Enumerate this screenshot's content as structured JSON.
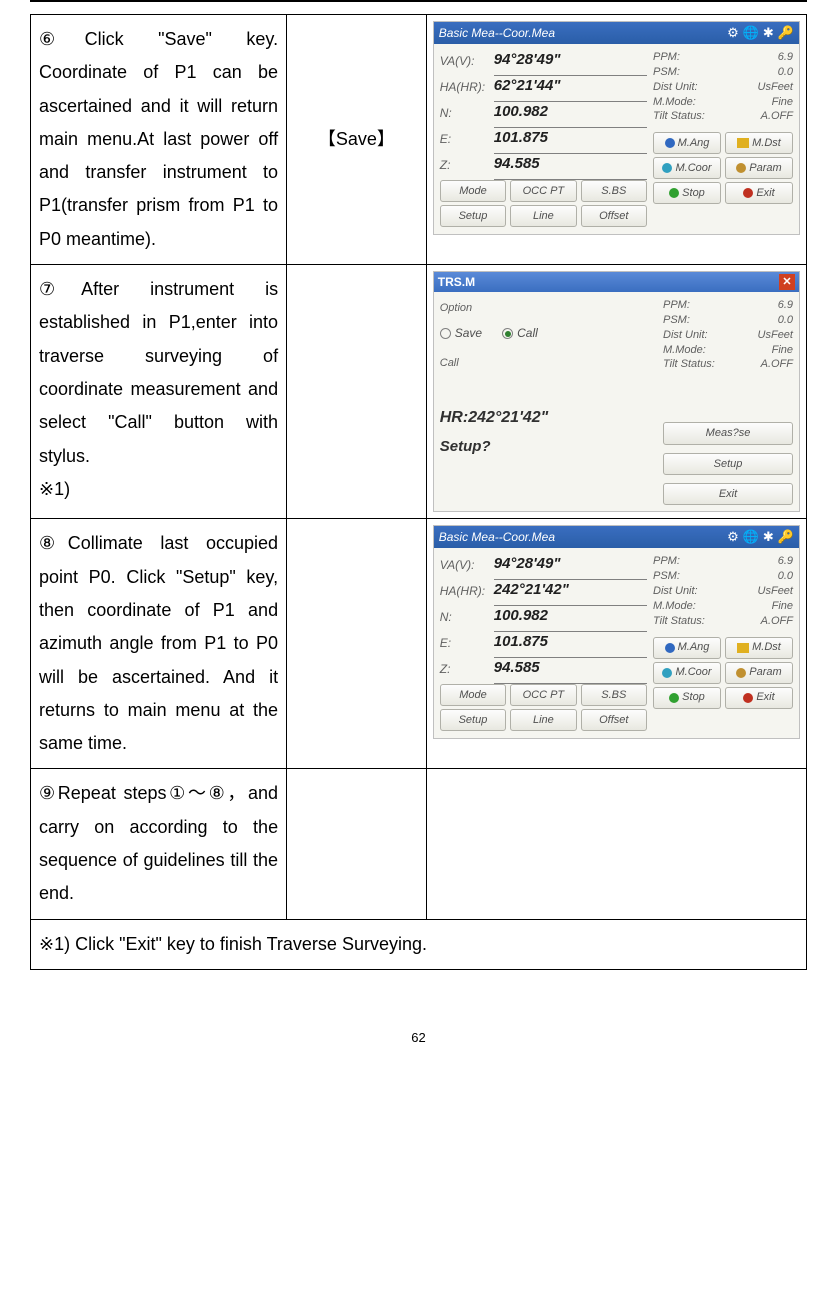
{
  "rows": [
    {
      "step": "⑥Click \"Save\" key. Coordinate of P1   can be ascertained and it will return main menu.At last power off and transfer instrument to P1(transfer prism from P1 to P0 meantime).",
      "action": "【Save】"
    },
    {
      "step": "⑦After instrument is established in P1,enter into traverse surveying of coordinate measurement and select \"Call\" button with stylus.\n※1)"
    },
    {
      "step": "⑧Collimate last occupied point P0. Click \"Setup\" key, then coordinate of P1 and azimuth angle from P1 to P0 will be ascertained. And it returns to main menu at the same time."
    },
    {
      "step": "⑨Repeat steps①～⑧，and carry on according to the sequence of guidelines till the end."
    }
  ],
  "footnote": "※1) Click \"Exit\" key to finish Traverse Surveying.",
  "pagenum": "62",
  "shot_coor": {
    "title": "Basic Mea--Coor.Mea",
    "info": {
      "ppm_l": "PPM:",
      "ppm_v": "6.9",
      "psm_l": "PSM:",
      "psm_v": "0.0",
      "dist_l": "Dist Unit:",
      "dist_v": "UsFeet",
      "mm_l": "M.Mode:",
      "mm_v": "Fine",
      "tilt_l": "Tilt Status:",
      "tilt_v": "A.OFF"
    },
    "btns": {
      "mang": "M.Ang",
      "mdst": "M.Dst",
      "mcoor": "M.Coor",
      "param": "Param",
      "mode": "Mode",
      "occpt": "OCC PT",
      "sbs": "S.BS",
      "setup": "Setup",
      "line": "Line",
      "offset": "Offset",
      "stop": "Stop",
      "exit": "Exit"
    }
  },
  "shot6": {
    "va_l": "VA(V):",
    "va_v": "94°28'49\"",
    "ha_l": "HA(HR):",
    "ha_v": "62°21'44\"",
    "n_l": "N:",
    "n_v": "100.982",
    "e_l": "E:",
    "e_v": "101.875",
    "z_l": "Z:",
    "z_v": "94.585"
  },
  "shot7": {
    "title": "TRS.M",
    "option": "Option",
    "save": "Save",
    "call": "Call",
    "call_lbl": "Call",
    "hr": "HR:242°21'42\"",
    "setup_q": "Setup?",
    "btn_meas": "Meas?se",
    "btn_setup": "Setup",
    "btn_exit": "Exit"
  },
  "shot8": {
    "va_l": "VA(V):",
    "va_v": "94°28'49\"",
    "ha_l": "HA(HR):",
    "ha_v": "242°21'42\"",
    "n_l": "N:",
    "n_v": "100.982",
    "e_l": "E:",
    "e_v": "101.875",
    "z_l": "Z:",
    "z_v": "94.585"
  }
}
